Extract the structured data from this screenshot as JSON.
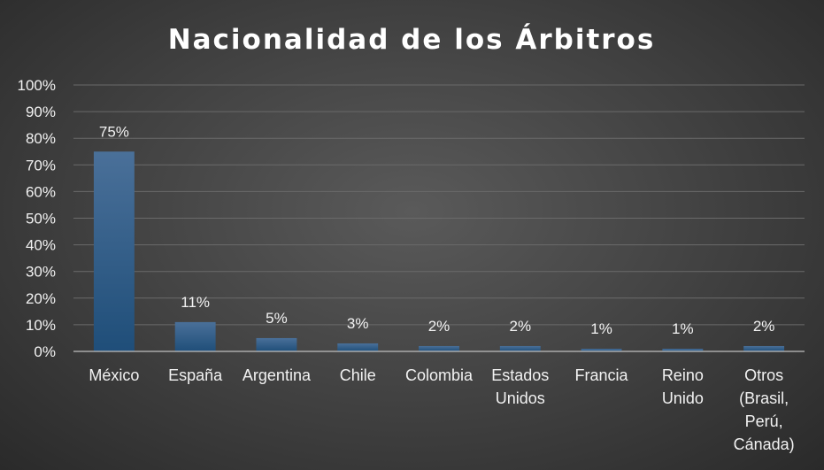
{
  "chart_data": {
    "type": "bar",
    "title": "Nacionalidad de los Árbitros",
    "xlabel": "",
    "ylabel": "",
    "categories": [
      "México",
      "España",
      "Argentina",
      "Chile",
      "Colombia",
      "Estados Unidos",
      "Francia",
      "Reino Unido",
      "Otros (Brasil, Perú, Cánada)"
    ],
    "category_lines": [
      [
        "México"
      ],
      [
        "España"
      ],
      [
        "Argentina"
      ],
      [
        "Chile"
      ],
      [
        "Colombia"
      ],
      [
        "Estados",
        "Unidos"
      ],
      [
        "Francia"
      ],
      [
        "Reino",
        "Unido"
      ],
      [
        "Otros",
        "(Brasil,",
        "Perú,",
        "Cánada)"
      ]
    ],
    "values": [
      75,
      11,
      5,
      3,
      2,
      2,
      1,
      1,
      2
    ],
    "data_labels": [
      "75%",
      "11%",
      "5%",
      "3%",
      "2%",
      "2%",
      "1%",
      "1%",
      "2%"
    ],
    "ylim": [
      0,
      100
    ],
    "yticks": [
      0,
      10,
      20,
      30,
      40,
      50,
      60,
      70,
      80,
      90,
      100
    ],
    "ytick_labels": [
      "0%",
      "10%",
      "20%",
      "30%",
      "40%",
      "50%",
      "60%",
      "70%",
      "80%",
      "90%",
      "100%"
    ],
    "grid": true,
    "legend": "none",
    "colors": {
      "bar_top": "#4a7099",
      "bar_bottom": "#1f4e79",
      "text": "#f2f2f2"
    }
  }
}
